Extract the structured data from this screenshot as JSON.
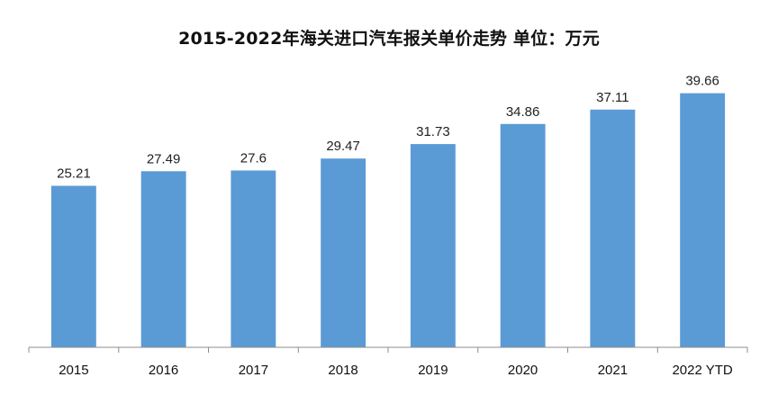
{
  "chart_data": {
    "type": "bar",
    "title": "2015-2022年海关进口汽车报关单价走势  单位：万元",
    "categories": [
      "2015",
      "2016",
      "2017",
      "2018",
      "2019",
      "2020",
      "2021",
      "2022 YTD"
    ],
    "values": [
      25.21,
      27.49,
      27.6,
      29.47,
      31.73,
      34.86,
      37.11,
      39.66
    ],
    "value_labels": [
      "25.21",
      "27.49",
      "27.6",
      "29.47",
      "31.73",
      "34.86",
      "37.11",
      "39.66"
    ],
    "xlabel": "",
    "ylabel": "",
    "ylim": [
      0,
      50
    ],
    "grid": false,
    "legend": "none",
    "colors": {
      "bar": "#5b9bd5",
      "axis": "#8c8c8c"
    }
  }
}
